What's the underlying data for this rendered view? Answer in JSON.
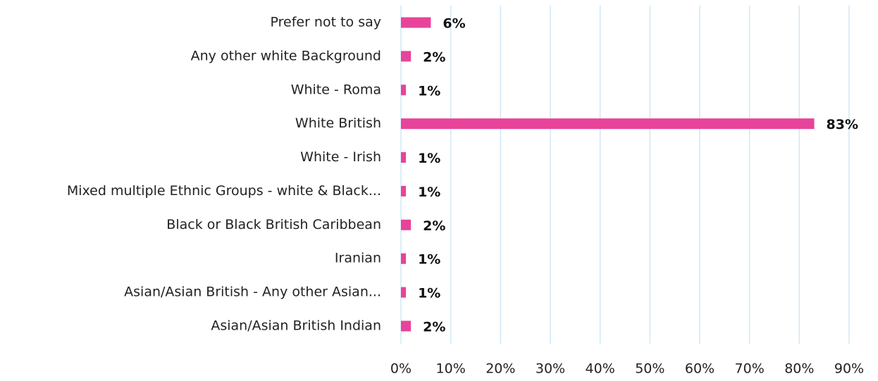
{
  "chart_data": {
    "type": "bar",
    "orientation": "horizontal",
    "categories": [
      "Prefer not to say",
      "Any other white Background",
      "White  - Roma",
      "White British",
      "White - Irish",
      "Mixed multiple Ethnic Groups - white & Black...",
      "Black or Black British Caribbean",
      "Iranian",
      "Asian/Asian British - Any other Asian...",
      "Asian/Asian British Indian"
    ],
    "values": [
      6,
      2,
      1,
      83,
      1,
      1,
      2,
      1,
      1,
      2
    ],
    "value_labels": [
      "6%",
      "2%",
      "1%",
      "83%",
      "1%",
      "1%",
      "2%",
      "1%",
      "1%",
      "2%"
    ],
    "color": "#e8439a",
    "xlim": [
      0,
      90
    ],
    "xticks": [
      {
        "value": 0,
        "label": "0%"
      },
      {
        "value": 10,
        "label": "10%"
      },
      {
        "value": 20,
        "label": "20%"
      },
      {
        "value": 30,
        "label": "30%"
      },
      {
        "value": 40,
        "label": "40%"
      },
      {
        "value": 50,
        "label": "50%"
      },
      {
        "value": 60,
        "label": "60%"
      },
      {
        "value": 70,
        "label": "70%"
      },
      {
        "value": 80,
        "label": "80%"
      },
      {
        "value": 90,
        "label": "90%"
      }
    ],
    "grid": true
  }
}
